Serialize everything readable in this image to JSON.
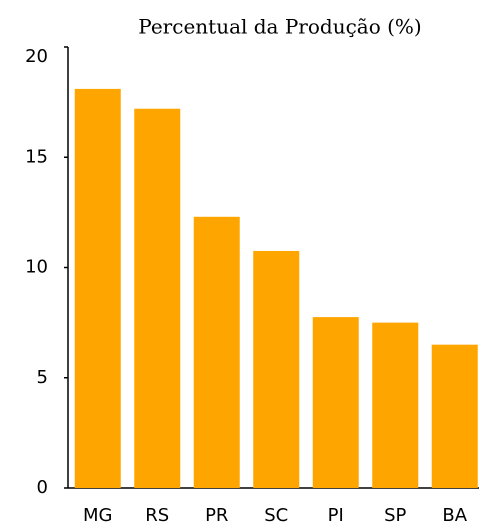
{
  "chart_data": {
    "type": "bar",
    "title": "Percentual da Produção (%)",
    "categories": [
      "MG",
      "RS",
      "PR",
      "SC",
      "PI",
      "SP",
      "BA"
    ],
    "values": [
      18.1,
      17.2,
      12.3,
      10.75,
      7.75,
      7.5,
      6.5
    ],
    "color": "#ffa500",
    "ylim": [
      0,
      20
    ],
    "yticks": [
      0,
      5,
      10,
      15,
      20
    ],
    "grid": false
  }
}
